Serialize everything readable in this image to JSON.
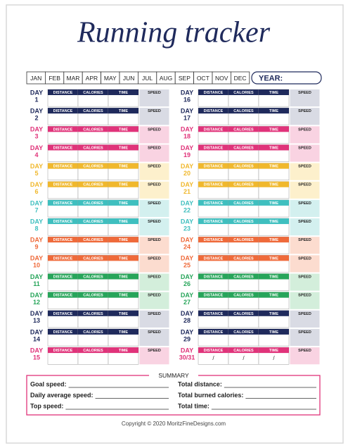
{
  "title": "Running tracker",
  "months": [
    "JAN",
    "FEB",
    "MAR",
    "APR",
    "MAY",
    "JUN",
    "JUL",
    "AUG",
    "SEP",
    "OCT",
    "NOV",
    "DEC"
  ],
  "year_label": "YEAR:",
  "day_word": "DAY",
  "columns": [
    "DISTANCE",
    "CALORIES",
    "TIME",
    "SPEED"
  ],
  "colors": {
    "navy": [
      "#1f2a5c",
      "#d9dbe4"
    ],
    "pink": [
      "#e0337a",
      "#f9d3e2"
    ],
    "yellow": [
      "#f0b82d",
      "#fdf0cc"
    ],
    "teal": [
      "#3fbfbf",
      "#d3f0ef"
    ],
    "orange": [
      "#ef6a3a",
      "#fcdccf"
    ],
    "green": [
      "#27a55a",
      "#d3eedb"
    ]
  },
  "left_days": [
    {
      "number": "1",
      "color": "navy"
    },
    {
      "number": "2",
      "color": "navy"
    },
    {
      "number": "3",
      "color": "pink"
    },
    {
      "number": "4",
      "color": "pink"
    },
    {
      "number": "5",
      "color": "yellow"
    },
    {
      "number": "6",
      "color": "yellow"
    },
    {
      "number": "7",
      "color": "teal"
    },
    {
      "number": "8",
      "color": "teal"
    },
    {
      "number": "9",
      "color": "orange"
    },
    {
      "number": "10",
      "color": "orange"
    },
    {
      "number": "11",
      "color": "green"
    },
    {
      "number": "12",
      "color": "green"
    },
    {
      "number": "13",
      "color": "navy"
    },
    {
      "number": "14",
      "color": "navy"
    },
    {
      "number": "15",
      "color": "pink"
    }
  ],
  "right_days": [
    {
      "number": "16",
      "color": "navy"
    },
    {
      "number": "17",
      "color": "navy"
    },
    {
      "number": "18",
      "color": "pink"
    },
    {
      "number": "19",
      "color": "pink"
    },
    {
      "number": "20",
      "color": "yellow"
    },
    {
      "number": "21",
      "color": "yellow"
    },
    {
      "number": "22",
      "color": "teal"
    },
    {
      "number": "23",
      "color": "teal"
    },
    {
      "number": "24",
      "color": "orange"
    },
    {
      "number": "25",
      "color": "orange"
    },
    {
      "number": "26",
      "color": "green"
    },
    {
      "number": "27",
      "color": "green"
    },
    {
      "number": "28",
      "color": "navy"
    },
    {
      "number": "29",
      "color": "navy"
    },
    {
      "number": "30/31",
      "color": "pink",
      "entries": [
        "/",
        "/",
        "/"
      ]
    }
  ],
  "summary": {
    "title": "SUMMARY",
    "left": [
      "Goal speed:",
      "Daily average speed:",
      "Top speed:"
    ],
    "right": [
      "Total distance:",
      "Total burned calories:",
      "Total time:"
    ]
  },
  "footer": "Copyright © 2020 MoritzFineDesigns.com"
}
